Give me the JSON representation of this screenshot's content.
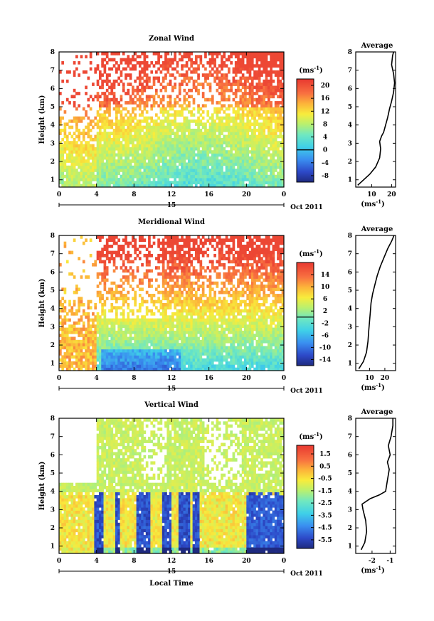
{
  "chart_data": [
    {
      "type": "heatmap",
      "title": "Zonal Wind",
      "ylabel": "Height (km)",
      "x_ticks": [
        "0",
        "4",
        "8",
        "12",
        "16",
        "20",
        "0"
      ],
      "y_ticks": [
        "1",
        "2",
        "3",
        "4",
        "5",
        "6",
        "7",
        "8"
      ],
      "xlim": [
        0,
        24
      ],
      "ylim": [
        0.6,
        8
      ],
      "date_day": "15",
      "date_month": "Oct 2011",
      "colorbar": {
        "unit": "(ms",
        "unit_sup": "-1",
        "unit_close": ")",
        "ticks": [
          "20",
          "16",
          "12",
          "8",
          "4",
          "0",
          "-4",
          "-8"
        ],
        "range": [
          -10,
          22
        ],
        "zero_line": 0
      },
      "average": {
        "title": "Average",
        "x_ticks": [
          "10",
          "20"
        ],
        "xlim": [
          2,
          22
        ],
        "xlabel": "(ms",
        "xlabel_sup": "-1",
        "xlabel_close": ")",
        "profile": [
          [
            3,
            0.7
          ],
          [
            6,
            1.0
          ],
          [
            9,
            1.3
          ],
          [
            12,
            1.7
          ],
          [
            14,
            2.2
          ],
          [
            14.5,
            2.7
          ],
          [
            14,
            3.1
          ],
          [
            15,
            3.4
          ],
          [
            16,
            3.6
          ],
          [
            17,
            4.0
          ],
          [
            18,
            4.4
          ],
          [
            19,
            4.9
          ],
          [
            20,
            5.3
          ],
          [
            21,
            5.8
          ],
          [
            21.5,
            6.3
          ],
          [
            21,
            6.8
          ],
          [
            20,
            7.3
          ],
          [
            20.5,
            7.8
          ],
          [
            21,
            8.0
          ]
        ]
      }
    },
    {
      "type": "heatmap",
      "title": "Meridional Wind",
      "ylabel": "Height (km)",
      "x_ticks": [
        "0",
        "4",
        "8",
        "12",
        "16",
        "20",
        "0"
      ],
      "y_ticks": [
        "1",
        "2",
        "3",
        "4",
        "5",
        "6",
        "7",
        "8"
      ],
      "xlim": [
        0,
        24
      ],
      "ylim": [
        0.6,
        8
      ],
      "date_day": "15",
      "date_month": "Oct 2011",
      "colorbar": {
        "unit": "(ms",
        "unit_sup": "-1",
        "unit_close": ")",
        "ticks": [
          "14",
          "10",
          "6",
          "2",
          "-2",
          "-6",
          "-10",
          "-14"
        ],
        "range": [
          -16,
          18
        ],
        "zero_line": 0
      },
      "average": {
        "title": "Average",
        "x_ticks": [
          "10",
          "20"
        ],
        "xlim": [
          1,
          27
        ],
        "xlabel": "(ms",
        "xlabel_sup": "-1",
        "xlabel_close": ")",
        "profile": [
          [
            3,
            0.7
          ],
          [
            6,
            1.1
          ],
          [
            8,
            1.6
          ],
          [
            9,
            2.2
          ],
          [
            9.5,
            2.8
          ],
          [
            10,
            3.3
          ],
          [
            10.5,
            3.8
          ],
          [
            11,
            4.3
          ],
          [
            12,
            4.8
          ],
          [
            13.5,
            5.3
          ],
          [
            15,
            5.8
          ],
          [
            17,
            6.3
          ],
          [
            19.5,
            6.8
          ],
          [
            22,
            7.3
          ],
          [
            24.5,
            7.7
          ],
          [
            26,
            8.0
          ]
        ]
      }
    },
    {
      "type": "heatmap",
      "title": "Vertical Wind",
      "ylabel": "Height (km)",
      "xlabel": "Local Time",
      "x_ticks": [
        "0",
        "4",
        "8",
        "12",
        "16",
        "20",
        "0"
      ],
      "y_ticks": [
        "1",
        "2",
        "3",
        "4",
        "5",
        "6",
        "7",
        "8"
      ],
      "xlim": [
        0,
        24
      ],
      "ylim": [
        0.6,
        8
      ],
      "date_day": "15",
      "date_month": "Oct 2011",
      "colorbar": {
        "unit": "(ms",
        "unit_sup": "-1",
        "unit_close": ")",
        "ticks": [
          "1.5",
          "0.5",
          "-0.5",
          "-1.5",
          "-2.5",
          "-3.5",
          "-4.5",
          "-5.5"
        ],
        "range": [
          -6.2,
          2.2
        ]
      },
      "average": {
        "title": "Average",
        "x_ticks": [
          "-2",
          "-1"
        ],
        "xlim": [
          -2.9,
          -0.7
        ],
        "xlabel": "(ms",
        "xlabel_sup": "-1",
        "xlabel_close": ")",
        "profile": [
          [
            -2.6,
            0.8
          ],
          [
            -2.4,
            1.2
          ],
          [
            -2.3,
            1.8
          ],
          [
            -2.35,
            2.4
          ],
          [
            -2.5,
            3.0
          ],
          [
            -2.55,
            3.3
          ],
          [
            -2.1,
            3.6
          ],
          [
            -1.6,
            3.8
          ],
          [
            -1.25,
            4.0
          ],
          [
            -1.15,
            4.6
          ],
          [
            -1.05,
            5.2
          ],
          [
            -1.15,
            5.6
          ],
          [
            -1.0,
            6.0
          ],
          [
            -1.1,
            6.5
          ],
          [
            -0.95,
            7.0
          ],
          [
            -0.85,
            7.6
          ],
          [
            -0.85,
            8.0
          ]
        ]
      }
    }
  ]
}
